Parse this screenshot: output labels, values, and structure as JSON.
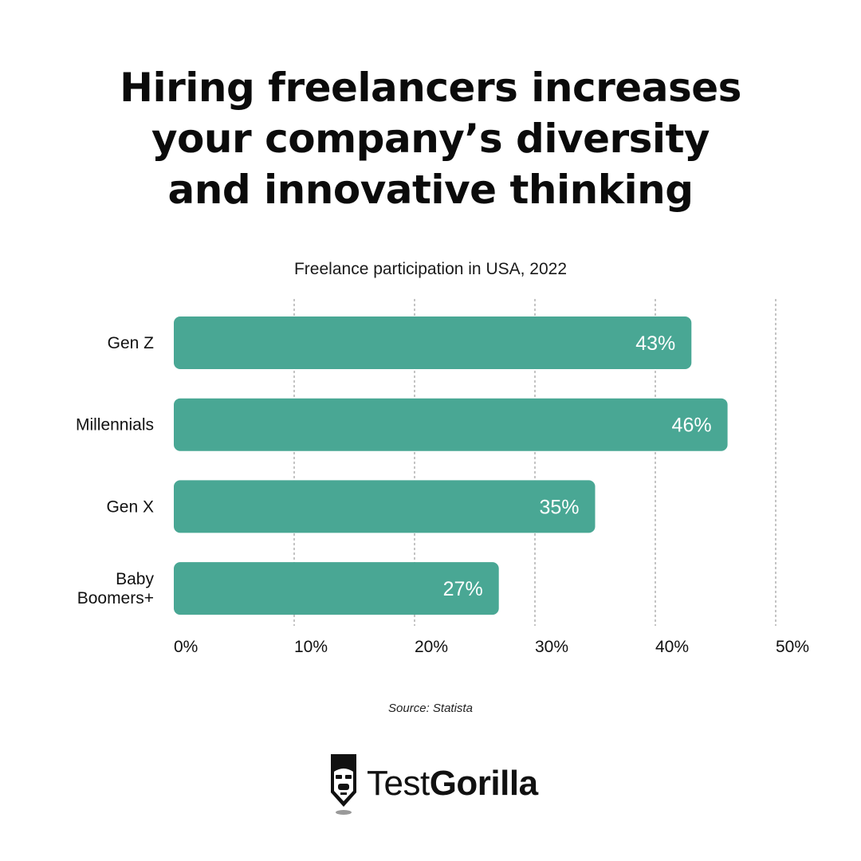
{
  "title_lines": [
    "Hiring freelancers increases",
    "your company’s diversity",
    "and innovative thinking"
  ],
  "source": "Source: Statista",
  "brand": {
    "part1": "Test",
    "part2": "Gorilla",
    "logo_icon": "gorilla-logo-icon"
  },
  "colors": {
    "bar": "#49a794",
    "bar_label": "#ffffff",
    "text": "#111111",
    "grid": "#8a8a8a"
  },
  "chart_data": {
    "type": "bar",
    "orientation": "horizontal",
    "title": "Freelance participation in USA, 2022",
    "categories": [
      "Gen Z",
      "Millennials",
      "Gen X",
      "Baby Boomers+"
    ],
    "values": [
      43,
      46,
      35,
      27
    ],
    "value_labels": [
      "43%",
      "46%",
      "35%",
      "27%"
    ],
    "xlim": [
      0,
      50
    ],
    "xticks": [
      0,
      10,
      20,
      30,
      40,
      50
    ],
    "xtick_labels": [
      "0%",
      "10%",
      "20%",
      "30%",
      "40%",
      "50%"
    ],
    "grid": true,
    "grid_style": "dashed vertical"
  }
}
